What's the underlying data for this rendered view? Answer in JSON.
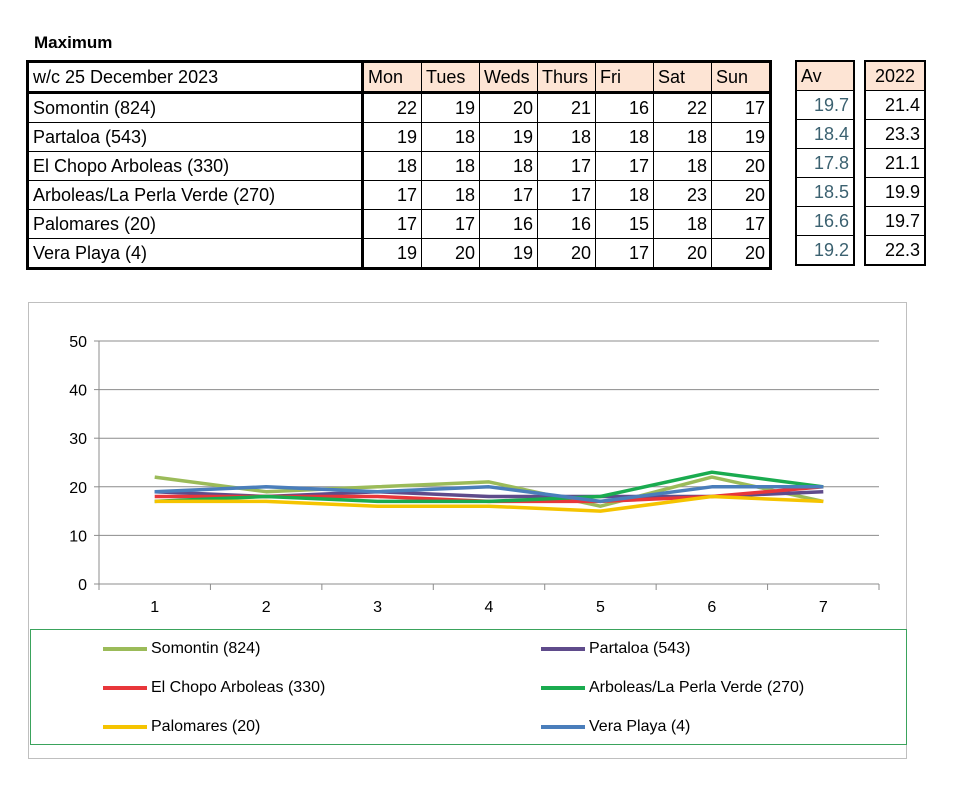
{
  "heading": "Maximum",
  "table": {
    "week_label": "w/c 25 December 2023",
    "days": [
      "Mon",
      "Tues",
      "Weds",
      "Thurs",
      "Fri",
      "Sat",
      "Sun"
    ],
    "av_header": "Av",
    "year_header": "2022",
    "rows": [
      {
        "name": "Somontin (824)",
        "values": [
          "22",
          "19",
          "20",
          "21",
          "16",
          "22",
          "17"
        ],
        "av": "19.7",
        "y2022": "21.4"
      },
      {
        "name": "Partaloa (543)",
        "values": [
          "19",
          "18",
          "19",
          "18",
          "18",
          "18",
          "19"
        ],
        "av": "18.4",
        "y2022": "23.3"
      },
      {
        "name": "El Chopo  Arboleas (330)",
        "values": [
          "18",
          "18",
          "18",
          "17",
          "17",
          "18",
          "20"
        ],
        "av": "17.8",
        "y2022": "21.1"
      },
      {
        "name": "Arboleas/La Perla Verde (270)",
        "values": [
          "17",
          "18",
          "17",
          "17",
          "18",
          "23",
          "20"
        ],
        "av": "18.5",
        "y2022": "19.9"
      },
      {
        "name": "Palomares (20)",
        "values": [
          "17",
          "17",
          "16",
          "16",
          "15",
          "18",
          "17"
        ],
        "av": "16.6",
        "y2022": "19.7"
      },
      {
        "name": "Vera Playa (4)",
        "values": [
          "19",
          "20",
          "19",
          "20",
          "17",
          "20",
          "20"
        ],
        "av": "19.2",
        "y2022": "22.3"
      }
    ]
  },
  "chart_data": {
    "type": "line",
    "x": [
      1,
      2,
      3,
      4,
      5,
      6,
      7
    ],
    "ylim": [
      0,
      50
    ],
    "yticks": [
      0,
      10,
      20,
      30,
      40,
      50
    ],
    "grid": true,
    "legend_position": "bottom",
    "series": [
      {
        "name": "Somontin (824)",
        "color": "#9bbb59",
        "values": [
          22,
          19,
          20,
          21,
          16,
          22,
          17
        ]
      },
      {
        "name": "Partaloa (543)",
        "color": "#5f4b8b",
        "values": [
          19,
          18,
          19,
          18,
          18,
          18,
          19
        ]
      },
      {
        "name": "El Chopo  Arboleas (330)",
        "color": "#e8363a",
        "values": [
          18,
          18,
          18,
          17,
          17,
          18,
          20
        ]
      },
      {
        "name": "Arboleas/La Perla Verde (270)",
        "color": "#1aab4f",
        "values": [
          17,
          18,
          17,
          17,
          18,
          23,
          20
        ]
      },
      {
        "name": "Palomares (20)",
        "color": "#f5c400",
        "values": [
          17,
          17,
          16,
          16,
          15,
          18,
          17
        ]
      },
      {
        "name": "Vera Playa (4)",
        "color": "#4a7ebb",
        "values": [
          19,
          20,
          19,
          20,
          17,
          20,
          20
        ]
      }
    ]
  }
}
